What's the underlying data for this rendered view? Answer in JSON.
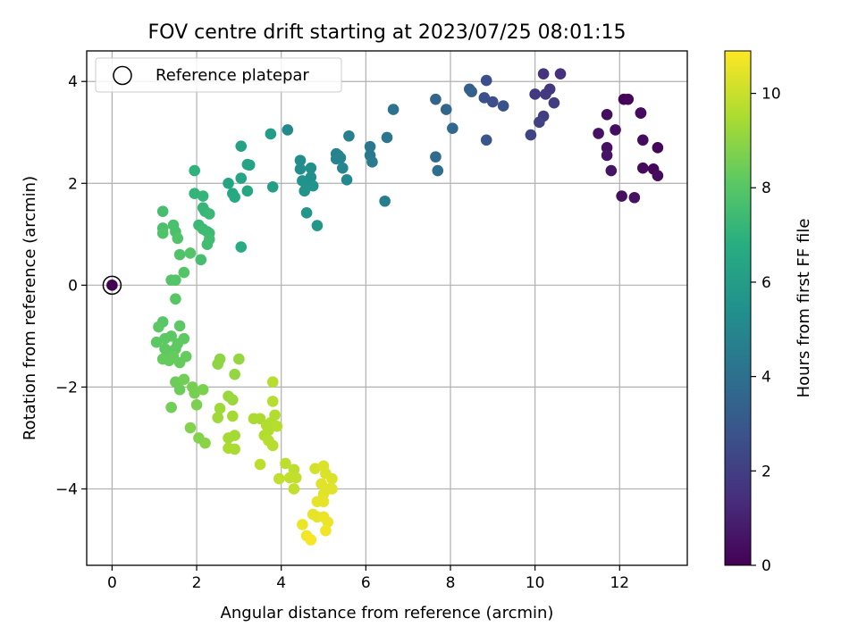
{
  "chart_data": {
    "type": "scatter",
    "title": "FOV centre drift starting at 2023/07/25 08:01:15",
    "xlabel": "Angular distance from reference (arcmin)",
    "ylabel": "Rotation from reference (arcmin)",
    "xlim": [
      -0.6,
      13.6
    ],
    "ylim": [
      -5.5,
      4.6
    ],
    "x_ticks": [
      0,
      2,
      4,
      6,
      8,
      10,
      12
    ],
    "y_ticks": [
      -4,
      -2,
      0,
      2,
      4
    ],
    "grid": true,
    "legend": {
      "placement": "top-left",
      "label": "Reference platepar"
    },
    "reference_point": {
      "x": 0,
      "y": 0
    },
    "colorbar": {
      "label": "Hours from first FF file",
      "colormap": "viridis",
      "range": [
        0,
        10.9
      ],
      "ticks": [
        0,
        2,
        4,
        6,
        8,
        10
      ]
    },
    "points": [
      {
        "x": 0,
        "y": 0,
        "c": 0
      },
      {
        "x": 12.1,
        "y": 3.65,
        "c": 0.1
      },
      {
        "x": 12.2,
        "y": 3.65,
        "c": 0.2
      },
      {
        "x": 12.5,
        "y": 3.38,
        "c": 0.2
      },
      {
        "x": 12.5,
        "y": 3.38,
        "c": 0.3
      },
      {
        "x": 11.7,
        "y": 3.35,
        "c": 0.4
      },
      {
        "x": 11.9,
        "y": 3.05,
        "c": 0.4
      },
      {
        "x": 11.5,
        "y": 2.98,
        "c": 0.5
      },
      {
        "x": 11.7,
        "y": 2.7,
        "c": 0.5
      },
      {
        "x": 11.7,
        "y": 2.55,
        "c": 0.6
      },
      {
        "x": 11.8,
        "y": 2.25,
        "c": 0.6
      },
      {
        "x": 12.55,
        "y": 2.85,
        "c": 0.3
      },
      {
        "x": 12.9,
        "y": 2.7,
        "c": 0.2
      },
      {
        "x": 12.55,
        "y": 2.3,
        "c": 0.3
      },
      {
        "x": 12.8,
        "y": 2.28,
        "c": 0.2
      },
      {
        "x": 12.9,
        "y": 2.15,
        "c": 0.3
      },
      {
        "x": 12.05,
        "y": 1.75,
        "c": 0.4
      },
      {
        "x": 12.35,
        "y": 1.72,
        "c": 0.5
      },
      {
        "x": 10.6,
        "y": 4.15,
        "c": 1.5
      },
      {
        "x": 10.2,
        "y": 4.15,
        "c": 1.6
      },
      {
        "x": 10.35,
        "y": 3.85,
        "c": 1.7
      },
      {
        "x": 10.0,
        "y": 3.75,
        "c": 1.8
      },
      {
        "x": 10.25,
        "y": 3.75,
        "c": 1.8
      },
      {
        "x": 10.45,
        "y": 3.58,
        "c": 1.9
      },
      {
        "x": 10.2,
        "y": 3.32,
        "c": 2.0
      },
      {
        "x": 10.1,
        "y": 3.2,
        "c": 2.1
      },
      {
        "x": 9.9,
        "y": 2.95,
        "c": 2.2
      },
      {
        "x": 8.85,
        "y": 4.02,
        "c": 2.6
      },
      {
        "x": 8.8,
        "y": 3.68,
        "c": 2.7
      },
      {
        "x": 9.0,
        "y": 3.6,
        "c": 2.6
      },
      {
        "x": 9.25,
        "y": 3.52,
        "c": 2.7
      },
      {
        "x": 8.85,
        "y": 2.85,
        "c": 2.9
      },
      {
        "x": 8.45,
        "y": 3.85,
        "c": 3.2
      },
      {
        "x": 8.5,
        "y": 3.8,
        "c": 3.3
      },
      {
        "x": 7.65,
        "y": 3.65,
        "c": 3.5
      },
      {
        "x": 7.9,
        "y": 3.45,
        "c": 3.6
      },
      {
        "x": 8.05,
        "y": 3.08,
        "c": 3.7
      },
      {
        "x": 7.65,
        "y": 2.52,
        "c": 3.8
      },
      {
        "x": 7.7,
        "y": 2.25,
        "c": 3.9
      },
      {
        "x": 6.65,
        "y": 3.45,
        "c": 4.1
      },
      {
        "x": 6.5,
        "y": 2.9,
        "c": 4.2
      },
      {
        "x": 6.1,
        "y": 2.72,
        "c": 4.3
      },
      {
        "x": 6.1,
        "y": 2.55,
        "c": 4.4
      },
      {
        "x": 6.15,
        "y": 2.42,
        "c": 4.5
      },
      {
        "x": 6.45,
        "y": 1.65,
        "c": 4.6
      },
      {
        "x": 5.6,
        "y": 2.93,
        "c": 4.7
      },
      {
        "x": 5.3,
        "y": 2.58,
        "c": 4.8
      },
      {
        "x": 5.35,
        "y": 2.55,
        "c": 4.8
      },
      {
        "x": 5.4,
        "y": 2.5,
        "c": 4.9
      },
      {
        "x": 5.3,
        "y": 2.48,
        "c": 4.9
      },
      {
        "x": 5.45,
        "y": 2.3,
        "c": 5.0
      },
      {
        "x": 5.55,
        "y": 2.07,
        "c": 5.1
      },
      {
        "x": 4.15,
        "y": 3.05,
        "c": 5.2
      },
      {
        "x": 4.45,
        "y": 2.45,
        "c": 5.3
      },
      {
        "x": 4.45,
        "y": 2.28,
        "c": 5.3
      },
      {
        "x": 4.7,
        "y": 2.3,
        "c": 5.4
      },
      {
        "x": 4.7,
        "y": 2.12,
        "c": 5.4
      },
      {
        "x": 4.5,
        "y": 2.05,
        "c": 5.5
      },
      {
        "x": 4.6,
        "y": 1.95,
        "c": 5.5
      },
      {
        "x": 4.75,
        "y": 1.95,
        "c": 5.6
      },
      {
        "x": 4.55,
        "y": 1.85,
        "c": 5.6
      },
      {
        "x": 4.6,
        "y": 1.42,
        "c": 5.7
      },
      {
        "x": 4.85,
        "y": 1.17,
        "c": 5.8
      },
      {
        "x": 3.75,
        "y": 2.97,
        "c": 6.0
      },
      {
        "x": 3.8,
        "y": 1.93,
        "c": 6.1
      },
      {
        "x": 3.05,
        "y": 2.73,
        "c": 6.2
      },
      {
        "x": 3.2,
        "y": 2.37,
        "c": 6.3
      },
      {
        "x": 3.25,
        "y": 2.36,
        "c": 6.3
      },
      {
        "x": 3.05,
        "y": 2.1,
        "c": 6.4
      },
      {
        "x": 2.75,
        "y": 2.0,
        "c": 6.4
      },
      {
        "x": 3.2,
        "y": 1.85,
        "c": 6.5
      },
      {
        "x": 2.85,
        "y": 1.8,
        "c": 6.5
      },
      {
        "x": 2.9,
        "y": 1.73,
        "c": 6.6
      },
      {
        "x": 3.05,
        "y": 0.75,
        "c": 6.7
      },
      {
        "x": 1.95,
        "y": 2.25,
        "c": 7.0
      },
      {
        "x": 1.95,
        "y": 1.8,
        "c": 7.1
      },
      {
        "x": 2.15,
        "y": 1.75,
        "c": 7.1
      },
      {
        "x": 2.15,
        "y": 1.52,
        "c": 7.2
      },
      {
        "x": 2.2,
        "y": 1.45,
        "c": 7.2
      },
      {
        "x": 2.3,
        "y": 1.4,
        "c": 7.3
      },
      {
        "x": 2.05,
        "y": 1.18,
        "c": 7.3
      },
      {
        "x": 2.15,
        "y": 1.1,
        "c": 7.4
      },
      {
        "x": 2.25,
        "y": 1.05,
        "c": 7.4
      },
      {
        "x": 2.3,
        "y": 1.02,
        "c": 7.4
      },
      {
        "x": 2.3,
        "y": 0.9,
        "c": 7.5
      },
      {
        "x": 2.25,
        "y": 0.8,
        "c": 7.5
      },
      {
        "x": 2.1,
        "y": 0.5,
        "c": 7.6
      },
      {
        "x": 1.2,
        "y": 1.45,
        "c": 7.6
      },
      {
        "x": 1.2,
        "y": 1.12,
        "c": 7.7
      },
      {
        "x": 1.45,
        "y": 1.18,
        "c": 7.7
      },
      {
        "x": 1.5,
        "y": 1.05,
        "c": 7.7
      },
      {
        "x": 1.55,
        "y": 0.92,
        "c": 7.8
      },
      {
        "x": 1.2,
        "y": 1.02,
        "c": 7.8
      },
      {
        "x": 1.6,
        "y": 0.6,
        "c": 7.8
      },
      {
        "x": 1.85,
        "y": 0.63,
        "c": 7.9
      },
      {
        "x": 1.7,
        "y": 0.25,
        "c": 7.9
      },
      {
        "x": 1.4,
        "y": 0.1,
        "c": 7.9
      },
      {
        "x": 1.5,
        "y": 0.1,
        "c": 7.9
      },
      {
        "x": 1.5,
        "y": -0.27,
        "c": 8.0
      },
      {
        "x": 1.2,
        "y": -0.72,
        "c": 8.0
      },
      {
        "x": 1.1,
        "y": -0.82,
        "c": 8.1
      },
      {
        "x": 1.6,
        "y": -0.8,
        "c": 8.1
      },
      {
        "x": 1.05,
        "y": -1.12,
        "c": 8.1
      },
      {
        "x": 1.25,
        "y": -1.05,
        "c": 8.1
      },
      {
        "x": 1.4,
        "y": -1.0,
        "c": 8.1
      },
      {
        "x": 1.55,
        "y": -1.15,
        "c": 8.2
      },
      {
        "x": 1.7,
        "y": -1.05,
        "c": 8.2
      },
      {
        "x": 1.25,
        "y": -1.25,
        "c": 8.2
      },
      {
        "x": 1.35,
        "y": -1.3,
        "c": 8.2
      },
      {
        "x": 1.5,
        "y": -1.25,
        "c": 8.2
      },
      {
        "x": 1.2,
        "y": -1.45,
        "c": 8.3
      },
      {
        "x": 1.35,
        "y": -1.48,
        "c": 8.3
      },
      {
        "x": 1.45,
        "y": -1.4,
        "c": 8.3
      },
      {
        "x": 1.6,
        "y": -1.52,
        "c": 8.3
      },
      {
        "x": 1.75,
        "y": -1.4,
        "c": 8.3
      },
      {
        "x": 1.5,
        "y": -1.9,
        "c": 8.4
      },
      {
        "x": 1.6,
        "y": -2.05,
        "c": 8.4
      },
      {
        "x": 1.7,
        "y": -1.85,
        "c": 8.5
      },
      {
        "x": 1.4,
        "y": -2.4,
        "c": 8.5
      },
      {
        "x": 1.9,
        "y": -2.0,
        "c": 8.6
      },
      {
        "x": 1.95,
        "y": -2.12,
        "c": 8.6
      },
      {
        "x": 2.15,
        "y": -2.05,
        "c": 8.7
      },
      {
        "x": 2.0,
        "y": -2.35,
        "c": 8.7
      },
      {
        "x": 1.85,
        "y": -2.8,
        "c": 8.8
      },
      {
        "x": 2.05,
        "y": -3.0,
        "c": 8.8
      },
      {
        "x": 2.2,
        "y": -3.1,
        "c": 8.9
      },
      {
        "x": 2.5,
        "y": -1.55,
        "c": 9.0
      },
      {
        "x": 2.55,
        "y": -1.45,
        "c": 9.0
      },
      {
        "x": 2.9,
        "y": -1.75,
        "c": 9.1
      },
      {
        "x": 3.0,
        "y": -1.45,
        "c": 9.1
      },
      {
        "x": 2.75,
        "y": -2.18,
        "c": 9.2
      },
      {
        "x": 2.85,
        "y": -2.25,
        "c": 9.2
      },
      {
        "x": 2.55,
        "y": -2.42,
        "c": 9.3
      },
      {
        "x": 2.5,
        "y": -2.6,
        "c": 9.3
      },
      {
        "x": 2.85,
        "y": -2.57,
        "c": 9.4
      },
      {
        "x": 2.75,
        "y": -3.0,
        "c": 9.4
      },
      {
        "x": 2.9,
        "y": -2.95,
        "c": 9.4
      },
      {
        "x": 2.75,
        "y": -3.2,
        "c": 9.5
      },
      {
        "x": 2.9,
        "y": -3.22,
        "c": 9.5
      },
      {
        "x": 3.35,
        "y": -2.62,
        "c": 9.5
      },
      {
        "x": 3.5,
        "y": -2.62,
        "c": 9.5
      },
      {
        "x": 3.65,
        "y": -2.75,
        "c": 9.6
      },
      {
        "x": 3.75,
        "y": -2.7,
        "c": 9.6
      },
      {
        "x": 3.85,
        "y": -2.55,
        "c": 9.6
      },
      {
        "x": 3.7,
        "y": -2.85,
        "c": 9.6
      },
      {
        "x": 3.6,
        "y": -2.95,
        "c": 9.6
      },
      {
        "x": 3.9,
        "y": -2.77,
        "c": 9.7
      },
      {
        "x": 3.7,
        "y": -3.05,
        "c": 9.7
      },
      {
        "x": 3.8,
        "y": -3.15,
        "c": 9.7
      },
      {
        "x": 3.8,
        "y": -1.9,
        "c": 9.7
      },
      {
        "x": 3.8,
        "y": -2.28,
        "c": 9.7
      },
      {
        "x": 3.5,
        "y": -3.52,
        "c": 9.8
      },
      {
        "x": 4.1,
        "y": -3.5,
        "c": 9.8
      },
      {
        "x": 4.3,
        "y": -3.62,
        "c": 9.8
      },
      {
        "x": 3.95,
        "y": -3.8,
        "c": 9.9
      },
      {
        "x": 4.2,
        "y": -3.78,
        "c": 9.9
      },
      {
        "x": 4.35,
        "y": -3.78,
        "c": 9.9
      },
      {
        "x": 4.3,
        "y": -4.0,
        "c": 9.9
      },
      {
        "x": 4.8,
        "y": -3.6,
        "c": 10.2
      },
      {
        "x": 5.0,
        "y": -3.55,
        "c": 10.3
      },
      {
        "x": 5.05,
        "y": -3.7,
        "c": 10.3
      },
      {
        "x": 5.2,
        "y": -3.8,
        "c": 10.3
      },
      {
        "x": 4.95,
        "y": -3.9,
        "c": 10.4
      },
      {
        "x": 5.1,
        "y": -4.0,
        "c": 10.4
      },
      {
        "x": 5.0,
        "y": -4.1,
        "c": 10.4
      },
      {
        "x": 5.2,
        "y": -4.0,
        "c": 10.4
      },
      {
        "x": 4.85,
        "y": -4.25,
        "c": 10.5
      },
      {
        "x": 5.0,
        "y": -4.25,
        "c": 10.5
      },
      {
        "x": 4.75,
        "y": -4.5,
        "c": 10.5
      },
      {
        "x": 4.85,
        "y": -4.55,
        "c": 10.5
      },
      {
        "x": 5.0,
        "y": -4.55,
        "c": 10.6
      },
      {
        "x": 5.1,
        "y": -4.65,
        "c": 10.6
      },
      {
        "x": 4.5,
        "y": -4.7,
        "c": 10.6
      },
      {
        "x": 5.05,
        "y": -4.82,
        "c": 10.7
      },
      {
        "x": 4.6,
        "y": -4.92,
        "c": 10.7
      },
      {
        "x": 4.7,
        "y": -5.0,
        "c": 10.8
      }
    ]
  }
}
